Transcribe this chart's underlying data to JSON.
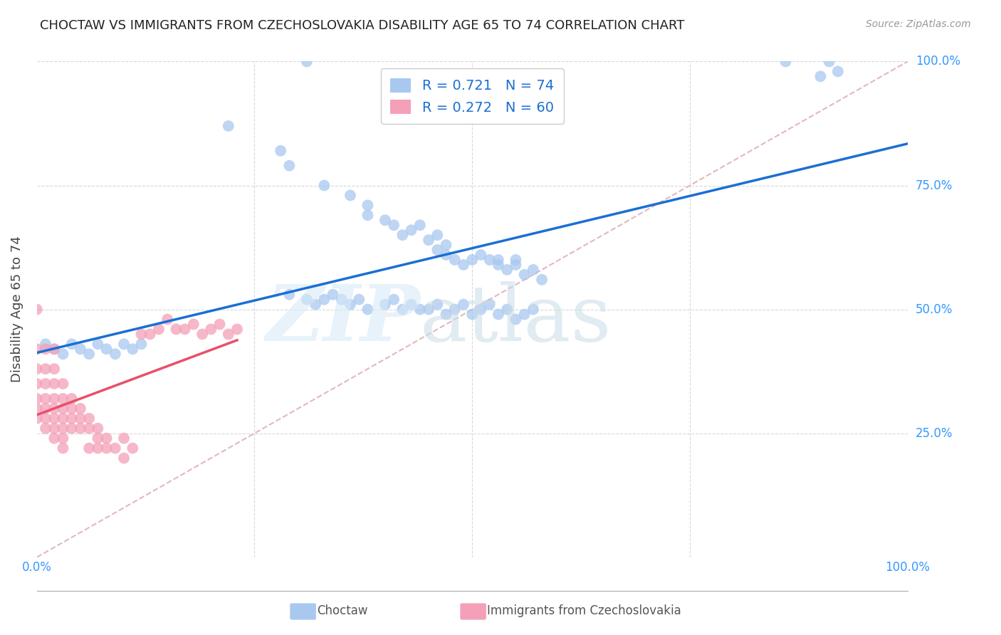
{
  "title": "CHOCTAW VS IMMIGRANTS FROM CZECHOSLOVAKIA DISABILITY AGE 65 TO 74 CORRELATION CHART",
  "source": "Source: ZipAtlas.com",
  "ylabel": "Disability Age 65 to 74",
  "xlim": [
    0,
    1.0
  ],
  "ylim": [
    0,
    1.0
  ],
  "blue_R": 0.721,
  "blue_N": 74,
  "pink_R": 0.272,
  "pink_N": 60,
  "blue_color": "#a8c8f0",
  "pink_color": "#f4a0b8",
  "blue_line_color": "#1a6fd4",
  "pink_line_color": "#e8506a",
  "dashed_line_color": "#e0b0b8",
  "grid_color": "#d8d8d8",
  "legend_text_color": "#1a6fd4",
  "tick_color": "#3399ff",
  "background_color": "#ffffff",
  "blue_scatter_x": [
    0.31,
    0.22,
    0.28,
    0.29,
    0.33,
    0.36,
    0.38,
    0.38,
    0.4,
    0.41,
    0.42,
    0.43,
    0.44,
    0.45,
    0.46,
    0.46,
    0.47,
    0.47,
    0.48,
    0.49,
    0.5,
    0.51,
    0.52,
    0.53,
    0.53,
    0.54,
    0.55,
    0.55,
    0.56,
    0.57,
    0.58,
    0.29,
    0.31,
    0.32,
    0.33,
    0.34,
    0.35,
    0.36,
    0.37,
    0.38,
    0.4,
    0.41,
    0.42,
    0.43,
    0.44,
    0.45,
    0.46,
    0.47,
    0.48,
    0.49,
    0.5,
    0.51,
    0.52,
    0.53,
    0.54,
    0.55,
    0.56,
    0.57,
    0.01,
    0.02,
    0.03,
    0.04,
    0.05,
    0.06,
    0.07,
    0.08,
    0.09,
    0.1,
    0.11,
    0.12,
    0.86,
    0.91,
    0.92,
    0.9
  ],
  "blue_scatter_y": [
    1.0,
    0.87,
    0.82,
    0.79,
    0.75,
    0.73,
    0.71,
    0.69,
    0.68,
    0.67,
    0.65,
    0.66,
    0.67,
    0.64,
    0.62,
    0.65,
    0.63,
    0.61,
    0.6,
    0.59,
    0.6,
    0.61,
    0.6,
    0.59,
    0.6,
    0.58,
    0.59,
    0.6,
    0.57,
    0.58,
    0.56,
    0.53,
    0.52,
    0.51,
    0.52,
    0.53,
    0.52,
    0.51,
    0.52,
    0.5,
    0.51,
    0.52,
    0.5,
    0.51,
    0.5,
    0.5,
    0.51,
    0.49,
    0.5,
    0.51,
    0.49,
    0.5,
    0.51,
    0.49,
    0.5,
    0.48,
    0.49,
    0.5,
    0.43,
    0.42,
    0.41,
    0.43,
    0.42,
    0.41,
    0.43,
    0.42,
    0.41,
    0.43,
    0.42,
    0.43,
    1.0,
    1.0,
    0.98,
    0.97
  ],
  "pink_scatter_x": [
    0.0,
    0.0,
    0.0,
    0.0,
    0.0,
    0.0,
    0.0,
    0.01,
    0.01,
    0.01,
    0.01,
    0.01,
    0.01,
    0.01,
    0.02,
    0.02,
    0.02,
    0.02,
    0.02,
    0.02,
    0.02,
    0.02,
    0.03,
    0.03,
    0.03,
    0.03,
    0.03,
    0.03,
    0.03,
    0.04,
    0.04,
    0.04,
    0.04,
    0.05,
    0.05,
    0.05,
    0.06,
    0.06,
    0.06,
    0.07,
    0.07,
    0.07,
    0.08,
    0.08,
    0.09,
    0.1,
    0.1,
    0.11,
    0.12,
    0.13,
    0.14,
    0.15,
    0.16,
    0.17,
    0.18,
    0.19,
    0.2,
    0.21,
    0.22,
    0.23
  ],
  "pink_scatter_y": [
    0.5,
    0.42,
    0.38,
    0.35,
    0.32,
    0.3,
    0.28,
    0.42,
    0.38,
    0.35,
    0.32,
    0.3,
    0.28,
    0.26,
    0.42,
    0.38,
    0.35,
    0.32,
    0.3,
    0.28,
    0.26,
    0.24,
    0.35,
    0.32,
    0.3,
    0.28,
    0.26,
    0.24,
    0.22,
    0.32,
    0.3,
    0.28,
    0.26,
    0.3,
    0.28,
    0.26,
    0.28,
    0.26,
    0.22,
    0.26,
    0.24,
    0.22,
    0.24,
    0.22,
    0.22,
    0.24,
    0.2,
    0.22,
    0.45,
    0.45,
    0.46,
    0.48,
    0.46,
    0.46,
    0.47,
    0.45,
    0.46,
    0.47,
    0.45,
    0.46
  ],
  "watermark_zip": "ZIP",
  "watermark_atlas": "atlas"
}
